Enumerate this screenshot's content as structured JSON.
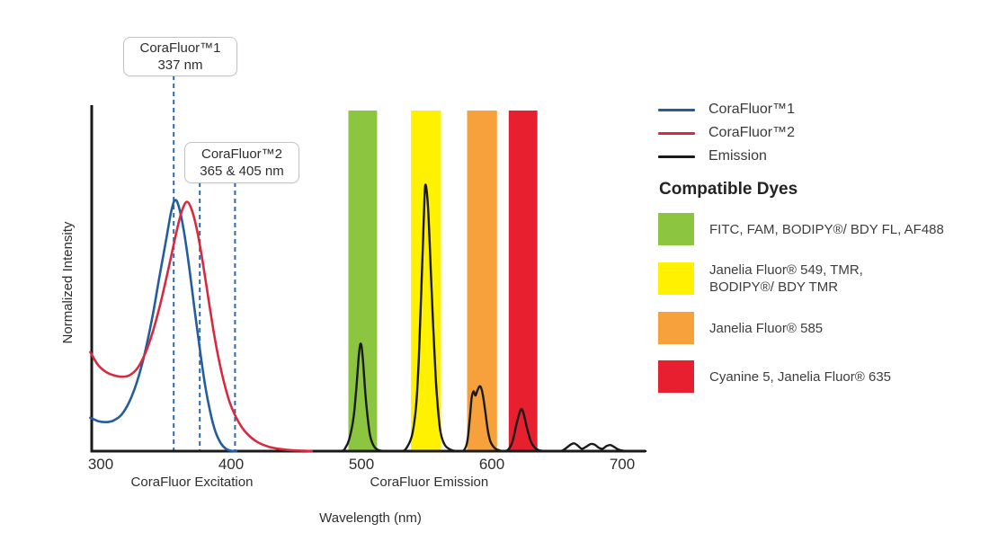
{
  "figure": {
    "y_axis_label": "Normalized Intensity",
    "x_axis_title": "Wavelength (nm)",
    "x_section_labels": [
      {
        "text": "CoraFluor Excitation",
        "center_nm": 370
      },
      {
        "text": "CoraFluor Emission",
        "center_nm": 552
      }
    ]
  },
  "callouts": [
    {
      "title": "CoraFluor™1",
      "subtitle": "337 nm",
      "marker_lines_nm": [
        356
      ]
    },
    {
      "title": "CoraFluor™2",
      "subtitle": "365 & 405 nm",
      "marker_lines_nm": [
        376,
        403
      ]
    }
  ],
  "legend": {
    "entries": [
      {
        "label": "CoraFluor™1",
        "color": "#235d9f"
      },
      {
        "label": "CoraFluor™2",
        "color": "#d8293f"
      },
      {
        "label": "Emission",
        "color": "#1a1a1a"
      }
    ]
  },
  "compatible_dyes": {
    "heading": "Compatible Dyes",
    "items": [
      {
        "color": "#8cc540",
        "label": "FITC, FAM, BODIPY®/ BDY FL, AF488"
      },
      {
        "color": "#fff100",
        "label": "Janelia Fluor® 549, TMR,\nBODIPY®/ BDY TMR"
      },
      {
        "color": "#f6a13b",
        "label": "Janelia Fluor® 585"
      },
      {
        "color": "#e71f2e",
        "label": "Cyanine 5, Janelia Fluor® 635"
      }
    ]
  },
  "chart_data": {
    "type": "line",
    "title": "CoraFluor excitation and emission spectra with compatible dye filter bands",
    "xlabel": "Wavelength (nm)",
    "ylabel": "Normalized Intensity",
    "x_ticks": [
      300,
      400,
      500,
      600,
      700
    ],
    "x_range": [
      292,
      718
    ],
    "y_range": [
      0,
      1
    ],
    "grid": false,
    "legend_position": "right",
    "marker_line_color": "#2e6aa8",
    "excitation_markers_nm": {
      "CoraFluor™1": [
        337
      ],
      "CoraFluor™2": [
        365,
        405
      ]
    },
    "emission_filter_bands": [
      {
        "nm": [
          490,
          512
        ],
        "color": "#8cc540",
        "dyes": "FITC, FAM, BODIPY®/ BDY FL, AF488"
      },
      {
        "nm": [
          538,
          561
        ],
        "color": "#fff100",
        "dyes": "Janelia Fluor® 549, TMR, BODIPY®/ BDY TMR"
      },
      {
        "nm": [
          581,
          604
        ],
        "color": "#f6a13b",
        "dyes": "Janelia Fluor® 585"
      },
      {
        "nm": [
          613,
          635
        ],
        "color": "#e71f2e",
        "dyes": "Cyanine 5, Janelia Fluor® 635"
      }
    ],
    "series": [
      {
        "name": "CoraFluor™1",
        "role": "excitation",
        "color": "#235d9f",
        "points": [
          [
            292,
            0.098
          ],
          [
            298,
            0.088
          ],
          [
            304,
            0.085
          ],
          [
            310,
            0.09
          ],
          [
            316,
            0.107
          ],
          [
            322,
            0.145
          ],
          [
            328,
            0.205
          ],
          [
            334,
            0.29
          ],
          [
            340,
            0.4
          ],
          [
            345,
            0.51
          ],
          [
            350,
            0.615
          ],
          [
            354,
            0.7
          ],
          [
            357,
            0.735
          ],
          [
            360,
            0.715
          ],
          [
            364,
            0.64
          ],
          [
            368,
            0.535
          ],
          [
            372,
            0.415
          ],
          [
            376,
            0.3
          ],
          [
            380,
            0.195
          ],
          [
            384,
            0.115
          ],
          [
            388,
            0.057
          ],
          [
            392,
            0.024
          ],
          [
            396,
            0.007
          ],
          [
            400,
            0.001
          ],
          [
            404,
            0
          ]
        ]
      },
      {
        "name": "CoraFluor™2",
        "role": "excitation",
        "color": "#d8293f",
        "points": [
          [
            292,
            0.29
          ],
          [
            298,
            0.252
          ],
          [
            304,
            0.232
          ],
          [
            310,
            0.222
          ],
          [
            316,
            0.218
          ],
          [
            322,
            0.222
          ],
          [
            328,
            0.242
          ],
          [
            334,
            0.285
          ],
          [
            340,
            0.35
          ],
          [
            346,
            0.435
          ],
          [
            352,
            0.535
          ],
          [
            358,
            0.64
          ],
          [
            362,
            0.7
          ],
          [
            366,
            0.73
          ],
          [
            370,
            0.705
          ],
          [
            374,
            0.645
          ],
          [
            378,
            0.56
          ],
          [
            382,
            0.462
          ],
          [
            386,
            0.365
          ],
          [
            390,
            0.28
          ],
          [
            395,
            0.195
          ],
          [
            400,
            0.132
          ],
          [
            406,
            0.084
          ],
          [
            412,
            0.052
          ],
          [
            420,
            0.027
          ],
          [
            428,
            0.014
          ],
          [
            436,
            0.007
          ],
          [
            446,
            0.003
          ],
          [
            456,
            0.001
          ],
          [
            462,
            0
          ]
        ]
      },
      {
        "name": "Emission",
        "role": "emission",
        "color": "#1a1a1a",
        "peaks_nm": [
          499,
          548,
          590,
          623
        ],
        "points": [
          [
            466,
            0
          ],
          [
            484,
            0
          ],
          [
            488,
            0.012
          ],
          [
            491,
            0.04
          ],
          [
            494,
            0.1
          ],
          [
            496,
            0.18
          ],
          [
            498,
            0.28
          ],
          [
            499.5,
            0.315
          ],
          [
            501,
            0.275
          ],
          [
            503,
            0.17
          ],
          [
            505,
            0.09
          ],
          [
            507,
            0.04
          ],
          [
            510,
            0.012
          ],
          [
            514,
            0.002
          ],
          [
            520,
            0
          ],
          [
            531,
            0
          ],
          [
            535,
            0.012
          ],
          [
            539,
            0.05
          ],
          [
            542,
            0.135
          ],
          [
            544,
            0.27
          ],
          [
            546,
            0.48
          ],
          [
            548,
            0.7
          ],
          [
            549,
            0.78
          ],
          [
            551,
            0.72
          ],
          [
            553,
            0.55
          ],
          [
            555,
            0.365
          ],
          [
            557,
            0.215
          ],
          [
            559,
            0.11
          ],
          [
            561,
            0.05
          ],
          [
            564,
            0.018
          ],
          [
            568,
            0.005
          ],
          [
            573,
            0
          ],
          [
            578,
            0
          ],
          [
            581,
            0.025
          ],
          [
            583,
            0.09
          ],
          [
            584.5,
            0.155
          ],
          [
            586,
            0.175
          ],
          [
            587.5,
            0.163
          ],
          [
            589,
            0.178
          ],
          [
            591,
            0.19
          ],
          [
            593,
            0.168
          ],
          [
            595,
            0.115
          ],
          [
            597,
            0.06
          ],
          [
            599,
            0.028
          ],
          [
            602,
            0.01
          ],
          [
            606,
            0.002
          ],
          [
            610,
            0
          ],
          [
            613,
            0.006
          ],
          [
            616,
            0.03
          ],
          [
            619,
            0.08
          ],
          [
            622,
            0.12
          ],
          [
            624,
            0.115
          ],
          [
            627,
            0.068
          ],
          [
            630,
            0.028
          ],
          [
            633,
            0.01
          ],
          [
            636,
            0.003
          ],
          [
            641,
            0
          ],
          [
            652,
            0
          ],
          [
            656,
            0.006
          ],
          [
            660,
            0.018
          ],
          [
            663,
            0.023
          ],
          [
            666,
            0.016
          ],
          [
            669,
            0.007
          ],
          [
            672,
            0.012
          ],
          [
            676,
            0.021
          ],
          [
            679,
            0.019
          ],
          [
            682,
            0.01
          ],
          [
            685,
            0.007
          ],
          [
            688,
            0.015
          ],
          [
            691,
            0.018
          ],
          [
            694,
            0.012
          ],
          [
            697,
            0.005
          ],
          [
            701,
            0.001
          ],
          [
            708,
            0
          ],
          [
            718,
            0
          ]
        ]
      }
    ]
  }
}
